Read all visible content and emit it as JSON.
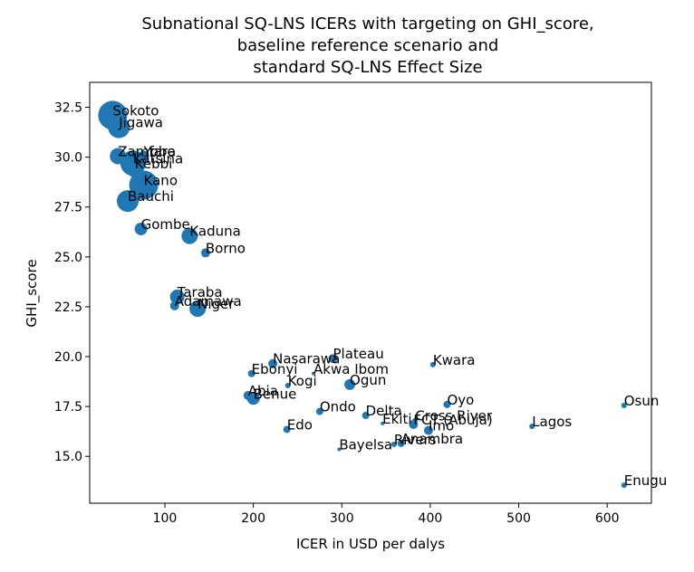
{
  "chart_data": {
    "type": "scatter",
    "title_lines": [
      "Subnational SQ-LNS ICERs with targeting on GHI_score,",
      "baseline reference scenario and",
      "standard SQ-LNS Effect Size"
    ],
    "xlabel": "ICER in USD per dalys",
    "ylabel": "GHI_score",
    "xlim": [
      15,
      650
    ],
    "ylim": [
      12.65,
      33.75
    ],
    "x_ticks": [
      100,
      200,
      300,
      400,
      500,
      600
    ],
    "y_ticks": [
      15.0,
      17.5,
      20.0,
      22.5,
      25.0,
      27.5,
      30.0,
      32.5
    ],
    "y_tick_labels": [
      "15.0",
      "17.5",
      "20.0",
      "22.5",
      "25.0",
      "27.5",
      "30.0",
      "32.5"
    ],
    "marker_color": "#1f77b4",
    "points": [
      {
        "label": "Sokoto",
        "x": 41,
        "y": 32.1,
        "size": 16
      },
      {
        "label": "Jigawa",
        "x": 48,
        "y": 31.5,
        "size": 12
      },
      {
        "label": "Zamfara",
        "x": 47,
        "y": 30.05,
        "size": 9
      },
      {
        "label": "Yobe",
        "x": 76,
        "y": 30.05,
        "size": 6
      },
      {
        "label": "Katsina",
        "x": 64,
        "y": 29.7,
        "size": 14
      },
      {
        "label": "Kebbi",
        "x": 66,
        "y": 29.45,
        "size": 10
      },
      {
        "label": "Kano",
        "x": 76,
        "y": 28.6,
        "size": 16
      },
      {
        "label": "Bauchi",
        "x": 58,
        "y": 27.8,
        "size": 12
      },
      {
        "label": "Gombe",
        "x": 73,
        "y": 26.4,
        "size": 7
      },
      {
        "label": "Kaduna",
        "x": 128,
        "y": 26.05,
        "size": 9
      },
      {
        "label": "Borno",
        "x": 146,
        "y": 25.2,
        "size": 5
      },
      {
        "label": "Taraba",
        "x": 114,
        "y": 23.0,
        "size": 8
      },
      {
        "label": "Adamawa",
        "x": 111,
        "y": 22.55,
        "size": 5
      },
      {
        "label": "Niger",
        "x": 137,
        "y": 22.4,
        "size": 9
      },
      {
        "label": "Plateau",
        "x": 290,
        "y": 19.9,
        "size": 5
      },
      {
        "label": "Nasarawa",
        "x": 222,
        "y": 19.65,
        "size": 5
      },
      {
        "label": "Kwara",
        "x": 403,
        "y": 19.6,
        "size": 3
      },
      {
        "label": "Ebonyi",
        "x": 198,
        "y": 19.15,
        "size": 4
      },
      {
        "label": "Akwa Ibom",
        "x": 268,
        "y": 19.15,
        "size": 2
      },
      {
        "label": "Kogi",
        "x": 239,
        "y": 18.55,
        "size": 3
      },
      {
        "label": "Ogun",
        "x": 309,
        "y": 18.6,
        "size": 6
      },
      {
        "label": "Abia",
        "x": 194,
        "y": 18.05,
        "size": 5
      },
      {
        "label": "Benue",
        "x": 200,
        "y": 17.9,
        "size": 7
      },
      {
        "label": "Oyo",
        "x": 419,
        "y": 17.6,
        "size": 4
      },
      {
        "label": "Osun",
        "x": 619,
        "y": 17.55,
        "size": 3
      },
      {
        "label": "Ondo",
        "x": 275,
        "y": 17.25,
        "size": 4
      },
      {
        "label": "Delta",
        "x": 327,
        "y": 17.05,
        "size": 4
      },
      {
        "label": "Cross River",
        "x": 383,
        "y": 16.8,
        "size": 3
      },
      {
        "label": "Ekiti",
        "x": 346,
        "y": 16.65,
        "size": 2
      },
      {
        "label": "FCT (Abuja)",
        "x": 381,
        "y": 16.6,
        "size": 5
      },
      {
        "label": "Lagos",
        "x": 515,
        "y": 16.5,
        "size": 3
      },
      {
        "label": "Imo",
        "x": 398,
        "y": 16.3,
        "size": 5
      },
      {
        "label": "Edo",
        "x": 238,
        "y": 16.35,
        "size": 4
      },
      {
        "label": "Anambra",
        "x": 367,
        "y": 15.65,
        "size": 4
      },
      {
        "label": "Rivers",
        "x": 359,
        "y": 15.6,
        "size": 3
      },
      {
        "label": "Bayelsa",
        "x": 297,
        "y": 15.35,
        "size": 2
      },
      {
        "label": "Enugu",
        "x": 619,
        "y": 13.55,
        "size": 3
      }
    ]
  }
}
